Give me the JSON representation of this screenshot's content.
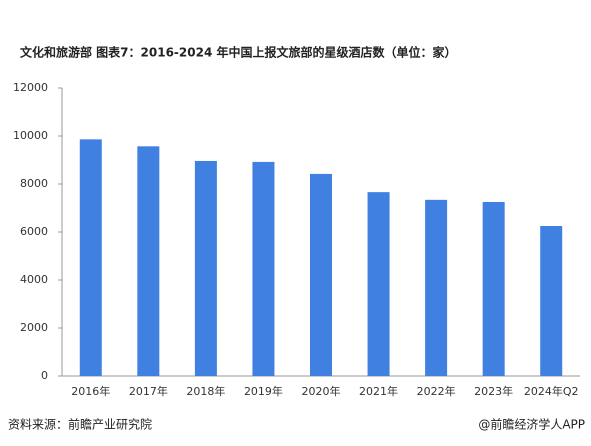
{
  "chart_data": {
    "type": "bar",
    "title": "文化和旅游部  图表7：2016-2024 年中国上报文旅部的星级酒店数（单位：家）",
    "categories": [
      "2016年",
      "2017年",
      "2018年",
      "2019年",
      "2020年",
      "2021年",
      "2022年",
      "2023年",
      "2024年Q2"
    ],
    "values": [
      9860,
      9570,
      8960,
      8920,
      8420,
      7660,
      7340,
      7250,
      6250
    ],
    "color": "#3f80e0",
    "ylim": [
      0,
      12000
    ],
    "yticks": [
      0,
      2000,
      4000,
      6000,
      8000,
      10000,
      12000
    ],
    "grid": false
  },
  "footer": {
    "source": "资料来源：前瞻产业研究院",
    "brand": "@前瞻经济学人APP"
  }
}
